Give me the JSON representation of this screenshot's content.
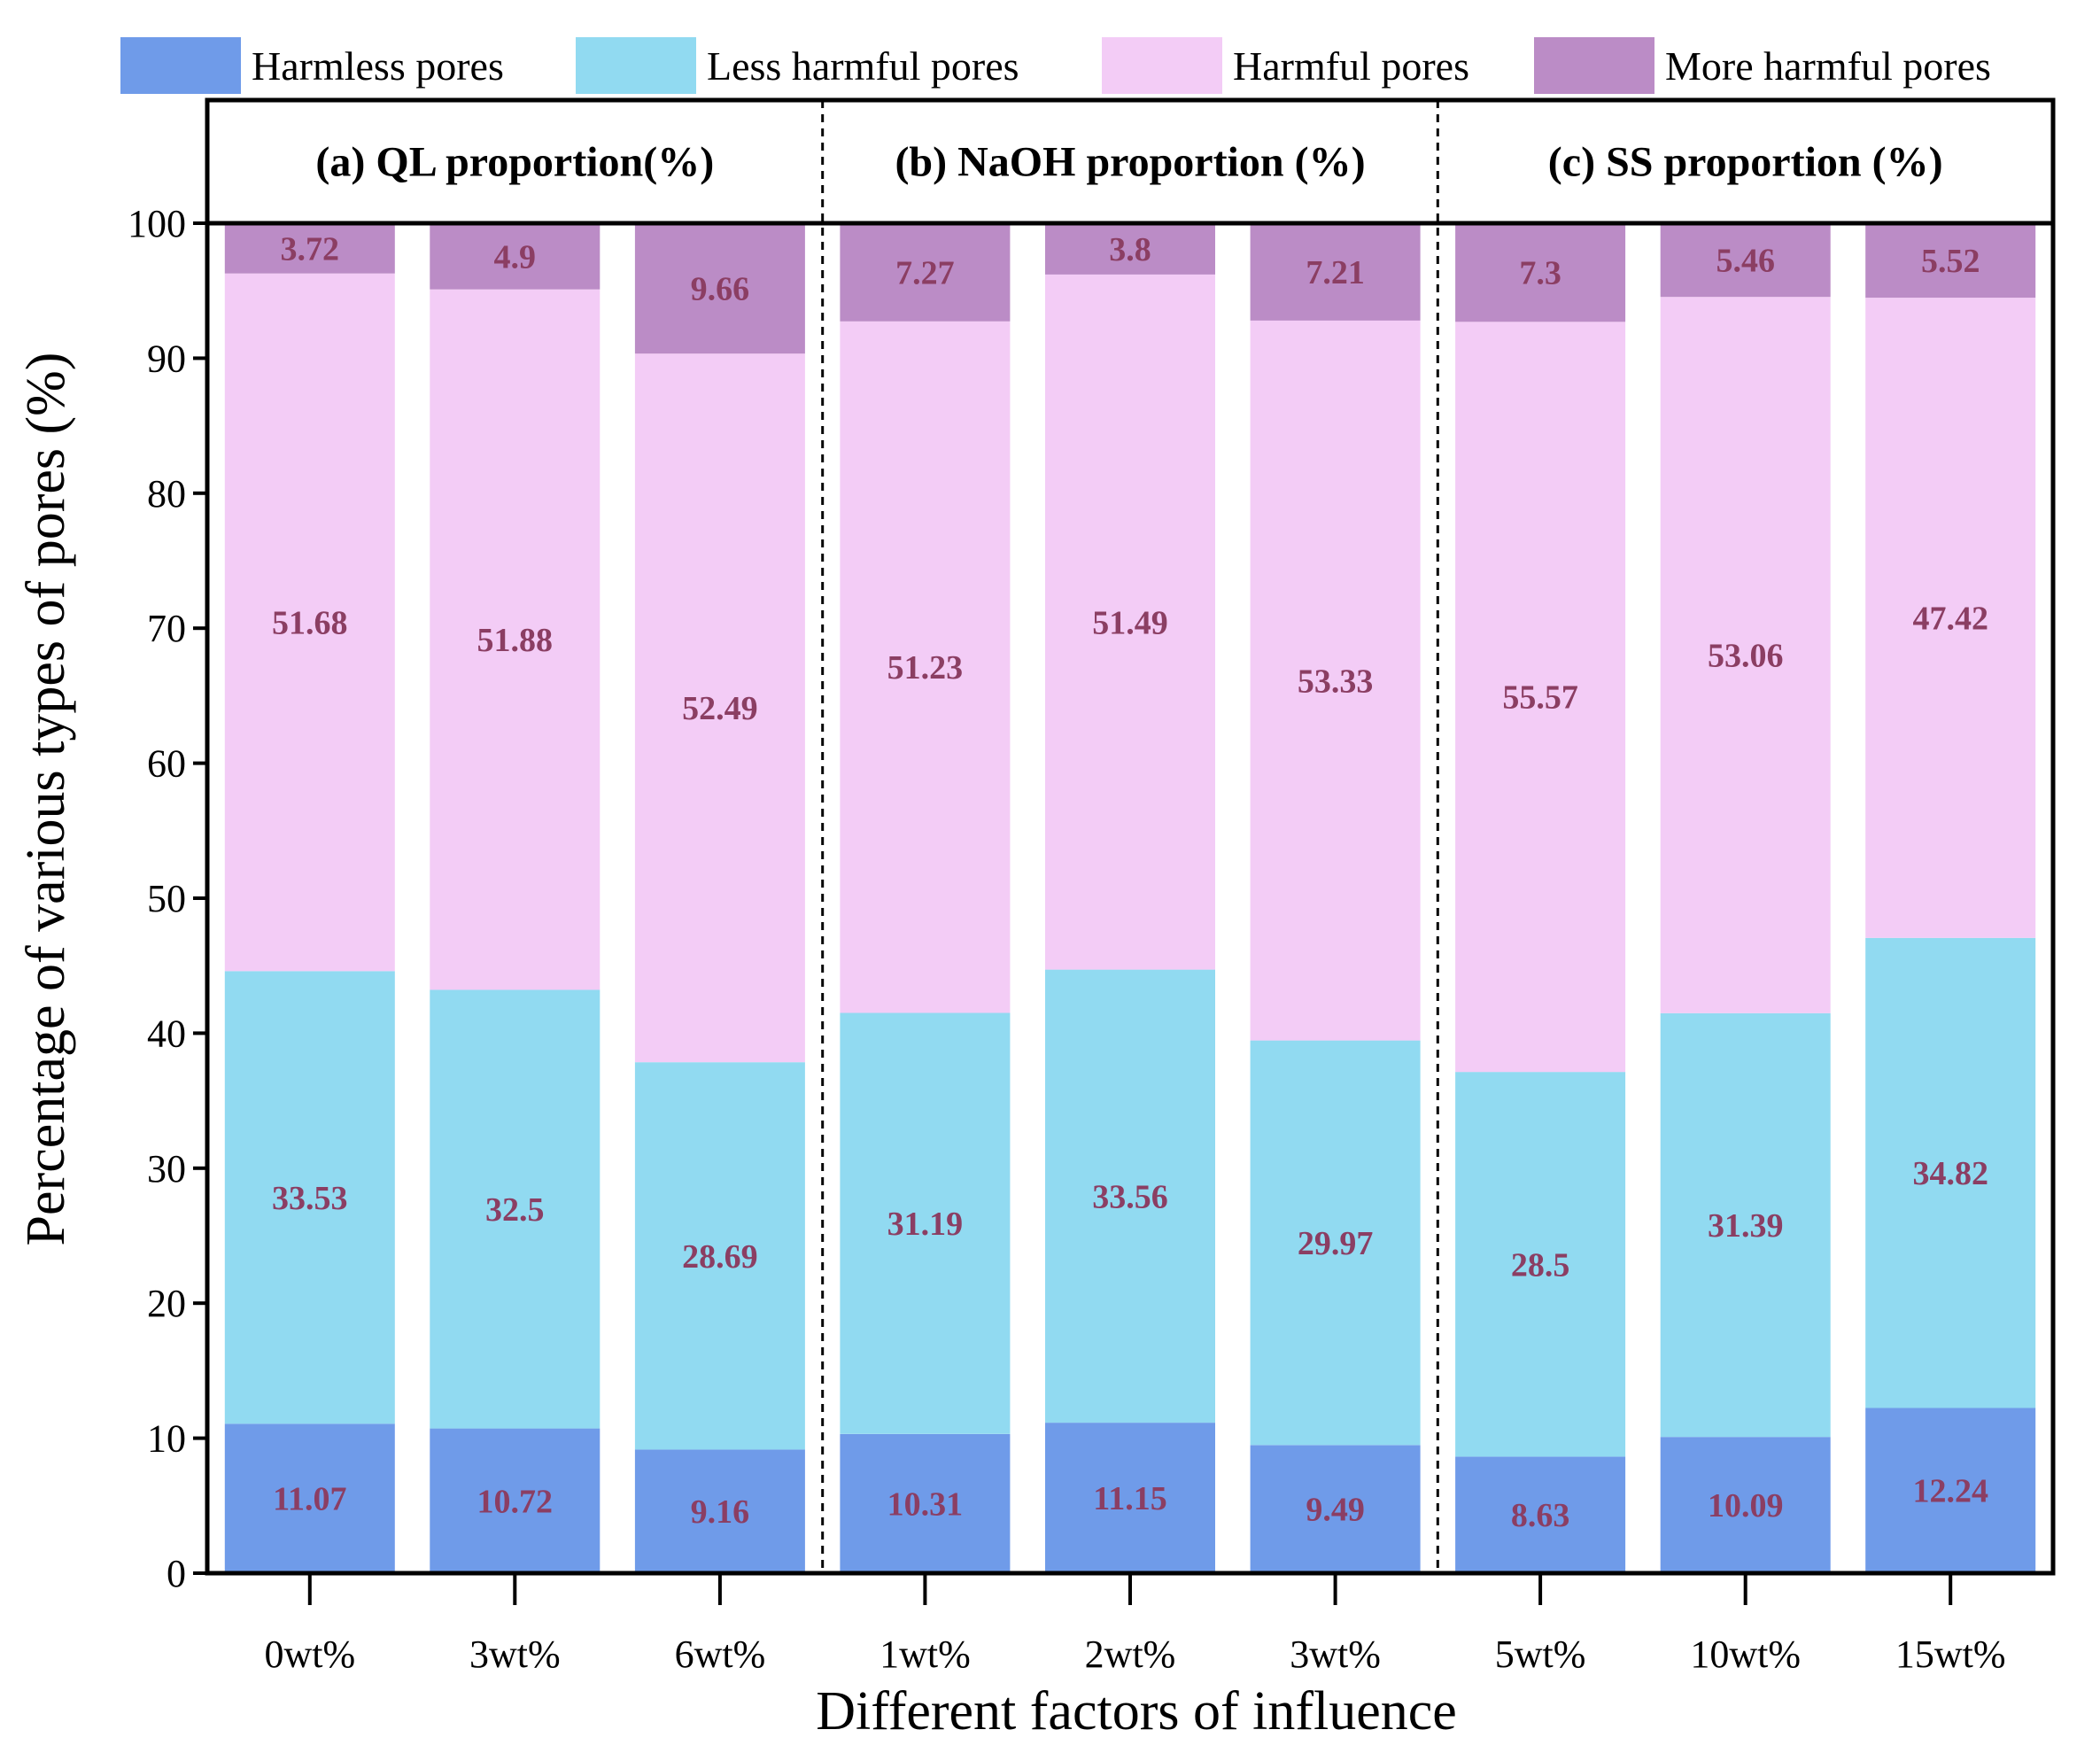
{
  "chart_data": {
    "type": "bar",
    "stacked": true,
    "title": "",
    "xlabel": "Different factors of influence",
    "ylabel": "Percentage of various types of pores (%)",
    "ylim": [
      0,
      100
    ],
    "yticks": [
      "0",
      "10",
      "20",
      "30",
      "40",
      "50",
      "60",
      "70",
      "80",
      "90",
      "100"
    ],
    "legend_position": "top",
    "categories": [
      "0wt%",
      "3wt%",
      "6wt%",
      "1wt%",
      "2wt%",
      "3wt%",
      "5wt%",
      "10wt%",
      "15wt%"
    ],
    "groups": [
      {
        "title": "(a) QL proportion(%)",
        "count": 3
      },
      {
        "title": "(b) NaOH proportion (%)",
        "count": 3
      },
      {
        "title": "(c) SS proportion (%)",
        "count": 3
      }
    ],
    "series": [
      {
        "name": "Harmless pores",
        "color": "#6F9BE9",
        "values": [
          11.07,
          10.72,
          9.16,
          10.31,
          11.15,
          9.49,
          8.63,
          10.09,
          12.24
        ],
        "labels": [
          "11.07",
          "10.72",
          "9.16",
          "10.31",
          "11.15",
          "9.49",
          "8.63",
          "10.09",
          "12.24"
        ]
      },
      {
        "name": "Less harmful pores",
        "color": "#91DAF1",
        "values": [
          33.53,
          32.5,
          28.69,
          31.19,
          33.56,
          29.97,
          28.5,
          31.39,
          34.82
        ],
        "labels": [
          "33.53",
          "32.5",
          "28.69",
          "31.19",
          "33.56",
          "29.97",
          "28.5",
          "31.39",
          "34.82"
        ]
      },
      {
        "name": "Harmful pores",
        "color": "#F3CCF6",
        "values": [
          51.68,
          51.88,
          52.49,
          51.23,
          51.49,
          53.33,
          55.57,
          53.06,
          47.42
        ],
        "labels": [
          "51.68",
          "51.88",
          "52.49",
          "51.23",
          "51.49",
          "53.33",
          "55.57",
          "53.06",
          "47.42"
        ]
      },
      {
        "name": "More harmful pores",
        "color": "#BB8CC6",
        "values": [
          3.72,
          4.9,
          9.66,
          7.27,
          3.8,
          7.21,
          7.3,
          5.46,
          5.52
        ],
        "labels": [
          "3.72",
          "4.9",
          "9.66",
          "7.27",
          "3.8",
          "7.21",
          "7.3",
          "5.46",
          "5.52"
        ]
      }
    ]
  }
}
